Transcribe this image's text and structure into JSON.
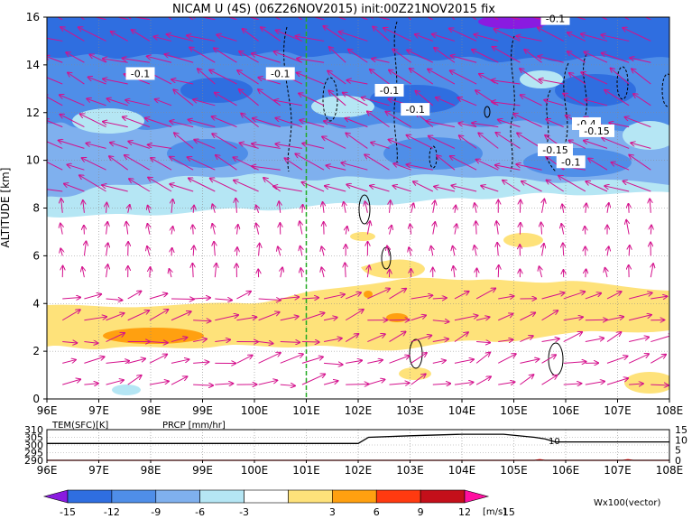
{
  "chart_data": [
    {
      "type": "contour-vector",
      "title": "NICAM U (4S) (06Z26NOV2015) init:00Z21NOV2015 fix",
      "ylabel": "ALTITUDE [km]",
      "x_tick_labels": [
        "96E",
        "97E",
        "98E",
        "99E",
        "100E",
        "101E",
        "102E",
        "103E",
        "104E",
        "105E",
        "106E",
        "107E",
        "108E"
      ],
      "x_ticks": [
        96,
        97,
        98,
        99,
        100,
        101,
        102,
        103,
        104,
        105,
        106,
        107,
        108
      ],
      "xlim": [
        96,
        108
      ],
      "y_ticks": [
        0,
        2,
        4,
        6,
        8,
        10,
        12,
        14,
        16
      ],
      "ylim": [
        0,
        16
      ],
      "grid": true,
      "marker_longitude": 101,
      "contour_labels": [
        {
          "text": "-0.1",
          "lon": 97.8,
          "alt": 13.6
        },
        {
          "text": "-0.1",
          "lon": 100.5,
          "alt": 13.6
        },
        {
          "text": "-0.1",
          "lon": 102.6,
          "alt": 12.9
        },
        {
          "text": "-0.1",
          "lon": 103.1,
          "alt": 12.1
        },
        {
          "text": "-0.1",
          "lon": 105.8,
          "alt": 15.9
        },
        {
          "text": "-0.4",
          "lon": 106.4,
          "alt": 11.5
        },
        {
          "text": "-0.15",
          "lon": 106.6,
          "alt": 11.2
        },
        {
          "text": "-0.15",
          "lon": 105.8,
          "alt": 10.4
        },
        {
          "text": "-0.1",
          "lon": 106.1,
          "alt": 9.9
        }
      ]
    },
    {
      "type": "line",
      "series": [
        {
          "name": "TEM(SFC)[K]",
          "color": "#000000",
          "axis": "left",
          "x": [
            96,
            101.5,
            102.0,
            102.2,
            103,
            104,
            104.8,
            105.4,
            105.6,
            105.8,
            106,
            108
          ],
          "y": [
            301,
            301,
            301,
            305,
            306,
            307,
            307,
            305,
            304,
            302,
            302,
            302
          ]
        },
        {
          "name": "PRCP [mm/hr]",
          "color": "#ff0000",
          "axis": "right",
          "x": [
            96,
            105.4,
            105.5,
            105.6,
            107.1,
            107.2,
            107.3,
            108
          ],
          "y": [
            0,
            0,
            0.3,
            0,
            0,
            0.3,
            0,
            0
          ]
        }
      ],
      "y_left_ticks": [
        290,
        295,
        300,
        305,
        310
      ],
      "y_left_lim": [
        290,
        310
      ],
      "y_right_ticks": [
        0,
        5,
        10,
        15
      ],
      "y_right_lim": [
        0,
        15
      ],
      "x_tick_labels": [
        "96E",
        "97E",
        "98E",
        "99E",
        "100E",
        "101E",
        "102E",
        "103E",
        "104E",
        "105E",
        "106E",
        "107E",
        "108E"
      ],
      "x_ticks": [
        96,
        97,
        98,
        99,
        100,
        101,
        102,
        103,
        104,
        105,
        106,
        107,
        108
      ],
      "xlim": [
        96,
        108
      ]
    }
  ],
  "colorbar": {
    "tick_labels": [
      "-15",
      "-12",
      "-9",
      "-6",
      "-3",
      "3",
      "6",
      "9",
      "12",
      "15"
    ],
    "colors": [
      "#8a1be0",
      "#2f6ee0",
      "#4f8ee8",
      "#7fb0ee",
      "#b5e6f4",
      "#ffffff",
      "#fee27a",
      "#ffa010",
      "#ff3a10",
      "#c40f1a",
      "#ff10a0"
    ],
    "unit": "[m/s]",
    "vector_label": "Wx100(vector)",
    "vector_color": "#d4108c"
  },
  "colors": {
    "neg_strong": "#2f6ee0",
    "neg_mid": "#4f8ee8",
    "neg_light": "#7fb0ee",
    "neg_pale": "#b5e6f4",
    "pos_light": "#fee27a",
    "pos_mid": "#ffa010",
    "marker": "#22aa22"
  }
}
